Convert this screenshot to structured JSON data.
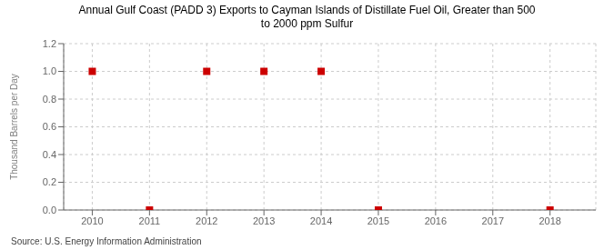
{
  "chart_data": {
    "type": "scatter",
    "title": "Annual Gulf Coast (PADD 3) Exports to Cayman Islands of Distillate Fuel Oil, Greater than 500\nto 2000 ppm Sulfur",
    "ylabel": "Thousand Barrels per Day",
    "source": "Source: U.S. Energy Information Administration",
    "x": [
      2010,
      2011,
      2012,
      2013,
      2014,
      2015,
      2016,
      2017,
      2018
    ],
    "values": [
      1.0,
      0.0,
      1.0,
      1.0,
      1.0,
      0.0,
      null,
      null,
      0.0
    ],
    "color": "#cc0000",
    "marker": "square",
    "xlim": [
      2009.5,
      2018.8
    ],
    "xticks": [
      2010,
      2011,
      2012,
      2013,
      2014,
      2015,
      2016,
      2017,
      2018
    ],
    "ylim": [
      0.0,
      1.2
    ],
    "yticks": [
      {
        "value": 0.0,
        "label": "0.0"
      },
      {
        "value": 0.2,
        "label": "0.2"
      },
      {
        "value": 0.4,
        "label": "0.4"
      },
      {
        "value": 0.6,
        "label": "0.6"
      },
      {
        "value": 0.8,
        "label": "0.8"
      },
      {
        "value": 1.0,
        "label": "1.0"
      },
      {
        "value": 1.2,
        "label": "1.2"
      }
    ],
    "grid": true
  }
}
